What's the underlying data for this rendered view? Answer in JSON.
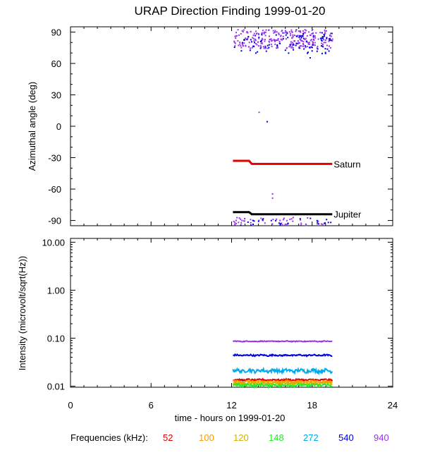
{
  "title": "URAP Direction Finding  1999-01-20",
  "colors": {
    "52": "#e00000",
    "100": "#ff9900",
    "120": "#d4b000",
    "148": "#22ee22",
    "272": "#00aaee",
    "540": "#0000dd",
    "940": "#9933ee",
    "reference": "#000000"
  },
  "chart_data": [
    {
      "type": "scatter",
      "ylabel": "Azimuthal angle (deg)",
      "xlim": [
        0,
        24
      ],
      "ylim": [
        -95,
        95
      ],
      "x_ticks": [
        0,
        6,
        12,
        18,
        24
      ],
      "y_ticks": [
        90,
        60,
        30,
        0,
        -30,
        -60,
        -90
      ],
      "y_tick_labels": [
        "90",
        "60",
        "30",
        "0",
        "-30",
        "-60",
        "-90"
      ],
      "reference_lines": [
        {
          "name": "Saturn",
          "color": "#e00000",
          "points": [
            [
              12.1,
              -33
            ],
            [
              13.3,
              -33
            ],
            [
              13.5,
              -36
            ],
            [
              19.5,
              -36
            ]
          ]
        },
        {
          "name": "Jupiter",
          "color": "#000000",
          "points": [
            [
              12.1,
              -82
            ],
            [
              13.3,
              -82
            ],
            [
              13.5,
              -84
            ],
            [
              19.5,
              -84
            ]
          ]
        }
      ],
      "scatter_clusters": [
        {
          "color_key": "940",
          "x_range": [
            12.1,
            19.5
          ],
          "y_range": [
            75,
            93
          ],
          "count": 260
        },
        {
          "color_key": "540",
          "x_range": [
            12.1,
            19.5
          ],
          "y_range": [
            70,
            90
          ],
          "count": 90
        },
        {
          "color_key": "940",
          "x_range": [
            12.1,
            19.5
          ],
          "y_range": [
            -94,
            -86
          ],
          "count": 50
        },
        {
          "color_key": "540",
          "x_range": [
            12.1,
            19.5
          ],
          "y_range": [
            -94,
            -87
          ],
          "count": 25
        }
      ],
      "scatter_points": [
        {
          "x": 14.0,
          "y": 14,
          "color_key": "940"
        },
        {
          "x": 14.6,
          "y": 5,
          "color_key": "540"
        },
        {
          "x": 15.0,
          "y": -64,
          "color_key": "940"
        },
        {
          "x": 15.0,
          "y": -68,
          "color_key": "940"
        },
        {
          "x": 17.8,
          "y": 66,
          "color_key": "540"
        }
      ]
    },
    {
      "type": "line",
      "ylabel": "Intensity (microvolt/sqrt(Hz))",
      "xlabel": "time - hours on 1999-01-20",
      "xlim": [
        0,
        24
      ],
      "ylim": [
        0.0095,
        12
      ],
      "y_scale": "log",
      "x_ticks": [
        0,
        6,
        12,
        18,
        24
      ],
      "x_tick_labels": [
        "0",
        "6",
        "12",
        "18",
        "24"
      ],
      "y_ticks": [
        10,
        1,
        0.1,
        0.01
      ],
      "y_tick_labels": [
        "10.00",
        "1.00",
        "0.10",
        "0.01"
      ],
      "x_range": [
        12.1,
        19.5
      ],
      "series": [
        {
          "color_key": "940",
          "base": 0.086,
          "noise": 0.02
        },
        {
          "color_key": "540",
          "base": 0.044,
          "noise": 0.035
        },
        {
          "color_key": "272",
          "base": 0.021,
          "noise": 0.08
        },
        {
          "color_key": "52",
          "base": 0.0135,
          "noise": 0.04
        },
        {
          "color_key": "100",
          "base": 0.0125,
          "noise": 0.04
        },
        {
          "color_key": "120",
          "base": 0.0115,
          "noise": 0.05
        },
        {
          "color_key": "148",
          "base": 0.0105,
          "noise": 0.06
        }
      ]
    }
  ],
  "legend": {
    "label": "Frequencies (kHz):",
    "items": [
      {
        "text": "52",
        "color_key": "52"
      },
      {
        "text": "100",
        "color_key": "100"
      },
      {
        "text": "120",
        "color_key": "120"
      },
      {
        "text": "148",
        "color_key": "148"
      },
      {
        "text": "272",
        "color_key": "272"
      },
      {
        "text": "540",
        "color_key": "540"
      },
      {
        "text": "940",
        "color_key": "940"
      }
    ]
  }
}
